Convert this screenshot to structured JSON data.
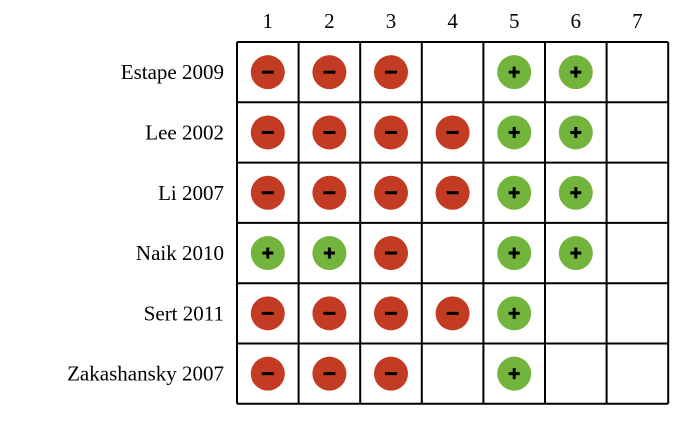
{
  "columns": [
    "1",
    "2",
    "3",
    "4",
    "5",
    "6",
    "7"
  ],
  "rows": [
    {
      "study": "Estape 2009",
      "cells": [
        "-",
        "-",
        "-",
        "",
        "+",
        "+",
        ""
      ]
    },
    {
      "study": "Lee 2002",
      "cells": [
        "-",
        "-",
        "-",
        "-",
        "+",
        "+",
        ""
      ]
    },
    {
      "study": "Li 2007",
      "cells": [
        "-",
        "-",
        "-",
        "-",
        "+",
        "+",
        ""
      ]
    },
    {
      "study": "Naik 2010",
      "cells": [
        "+",
        "+",
        "-",
        "",
        "+",
        "+",
        ""
      ]
    },
    {
      "study": "Sert 2011",
      "cells": [
        "-",
        "-",
        "-",
        "-",
        "+",
        "",
        ""
      ]
    },
    {
      "study": "Zakashansky 2007",
      "cells": [
        "-",
        "-",
        "-",
        "",
        "+",
        "",
        ""
      ]
    }
  ],
  "symbols": {
    "+": {
      "meaning": "plus",
      "color": "#72b43c",
      "glyph": "+"
    },
    "-": {
      "meaning": "minus",
      "color": "#c23b22",
      "glyph": "−"
    }
  },
  "grid_color": "#000000"
}
